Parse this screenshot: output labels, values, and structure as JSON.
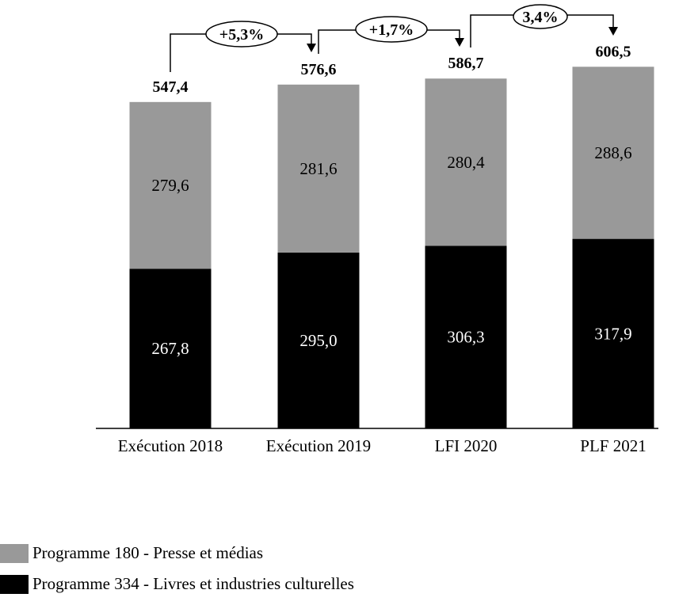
{
  "chart_data": {
    "type": "bar",
    "stacked": true,
    "categories": [
      "Exécution 2018",
      "Exécution 2019",
      "LFI 2020",
      "PLF 2021"
    ],
    "series": [
      {
        "name": "Programme 334 - Livres et industries culturelles",
        "values": [
          267.8,
          295.0,
          306.3,
          317.9
        ],
        "labels": [
          "267,8",
          "295,0",
          "306,3",
          "317,9"
        ],
        "color": "#000000"
      },
      {
        "name": "Programme 180 - Presse et médias",
        "values": [
          279.6,
          281.6,
          280.4,
          288.6
        ],
        "labels": [
          "279,6",
          "281,6",
          "280,4",
          "288,6"
        ],
        "color": "#999999"
      }
    ],
    "totals": [
      547.4,
      576.6,
      586.7,
      606.5
    ],
    "total_labels": [
      "547,4",
      "576,6",
      "586,7",
      "606,5"
    ],
    "changes": [
      "+5,3%",
      "+1,7%",
      "3,4%"
    ],
    "legend": [
      "Programme 180 - Presse et médias",
      "Programme 334 - Livres et industries culturelles"
    ],
    "legend_colors": [
      "#999999",
      "#000000"
    ],
    "legend_position": "bottom-left",
    "ylim": [
      0,
      680
    ],
    "grid": false
  }
}
